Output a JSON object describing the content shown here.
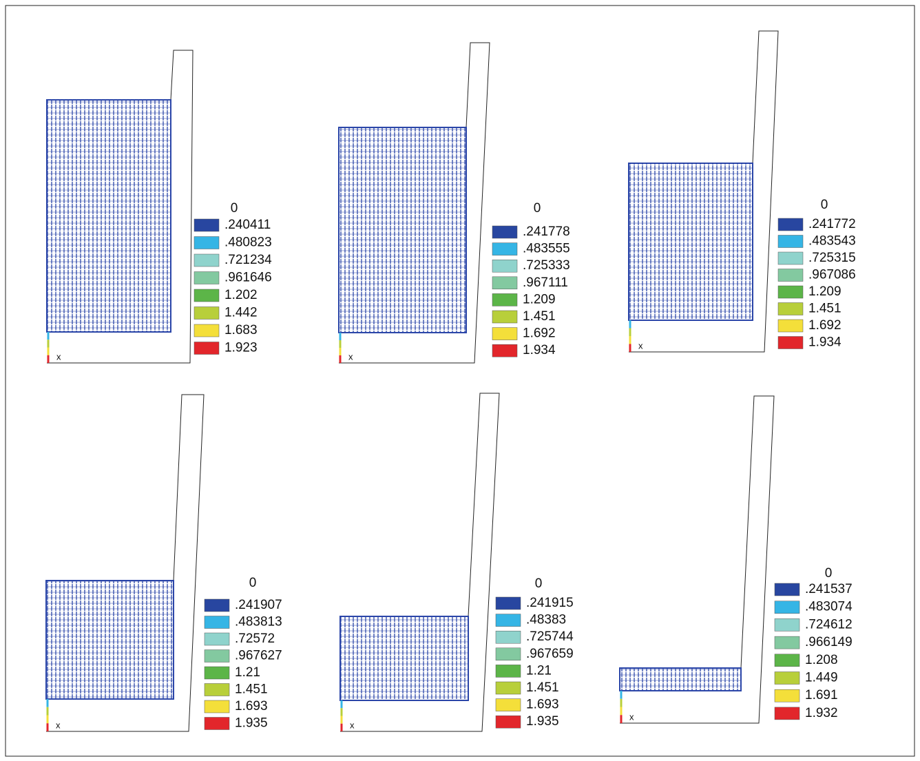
{
  "legend_colors": [
    "#2846a0",
    "#35b5e5",
    "#8fd3cc",
    "#83c9a0",
    "#5cb548",
    "#b8cf3a",
    "#f4df3a",
    "#e2262b"
  ],
  "panels": [
    {
      "zero_label": "0",
      "axis_label": "x",
      "legend": [
        ".240411",
        ".480823",
        ".721234",
        ".961646",
        "1.202",
        "1.442",
        "1.683",
        "1.923"
      ]
    },
    {
      "zero_label": "0",
      "axis_label": "x",
      "legend": [
        ".241778",
        ".483555",
        ".725333",
        ".967111",
        "1.209",
        "1.451",
        "1.692",
        "1.934"
      ]
    },
    {
      "zero_label": "0",
      "axis_label": "x",
      "legend": [
        ".241772",
        ".483543",
        ".725315",
        ".967086",
        "1.209",
        "1.451",
        "1.692",
        "1.934"
      ]
    },
    {
      "zero_label": "0",
      "axis_label": "x",
      "legend": [
        ".241907",
        ".483813",
        ".72572",
        ".967627",
        "1.21",
        "1.451",
        "1.693",
        "1.935"
      ]
    },
    {
      "zero_label": "0",
      "axis_label": "x",
      "legend": [
        ".241915",
        ".48383",
        ".725744",
        ".967659",
        "1.21",
        "1.451",
        "1.693",
        "1.935"
      ]
    },
    {
      "zero_label": "0",
      "axis_label": "x",
      "legend": [
        ".241537",
        ".483074",
        ".724612",
        ".966149",
        "1.208",
        "1.449",
        "1.691",
        "1.932"
      ]
    }
  ]
}
